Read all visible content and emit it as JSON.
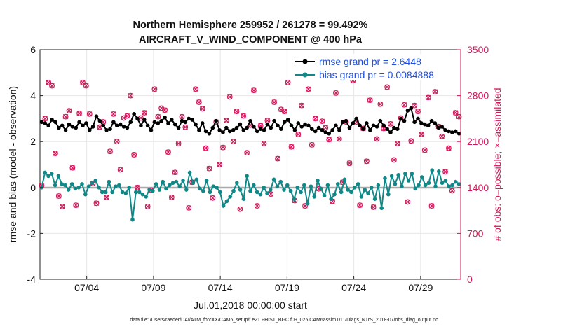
{
  "chart_data": {
    "type": "line",
    "title": "Northern Hemisphere 259952 / 261278 = 99.492%",
    "subtitle": "AIRCRAFT_V_WIND_COMPONENT @ 400 hPa",
    "xlabel": "Jul.01,2018 00:00:00 start",
    "ylabel": "rmse and bias (model - observation)",
    "y2label": "# of obs: o=possible; ×=assimilated",
    "xlim": [
      0,
      31.5
    ],
    "ylim": [
      -4,
      6
    ],
    "y2lim": [
      0,
      3500
    ],
    "grid": true,
    "legend_position": "top-right",
    "xticks": [
      3.5,
      8.5,
      13.5,
      18.5,
      23.5,
      28.5
    ],
    "xtick_labels": [
      "07/04",
      "07/09",
      "07/14",
      "07/19",
      "07/24",
      "07/29"
    ],
    "yticks": [
      -4,
      -2,
      0,
      2,
      4,
      6
    ],
    "ytick_labels": [
      "-4",
      "-2",
      "0",
      "2",
      "4",
      "6"
    ],
    "y2ticks": [
      0,
      700,
      1400,
      2100,
      2800,
      3500
    ],
    "y2tick_labels": [
      "0",
      "700",
      "1400",
      "2100",
      "2800",
      "3500"
    ],
    "series": [
      {
        "name": "rmse grand pr = 2.6448",
        "color": "#000000",
        "axis": "left",
        "values": [
          2.85,
          2.8,
          2.7,
          2.95,
          2.85,
          2.6,
          2.7,
          2.5,
          2.75,
          2.65,
          2.6,
          2.85,
          2.7,
          2.8,
          2.5,
          2.65,
          3.1,
          2.9,
          2.7,
          2.5,
          2.55,
          2.85,
          2.7,
          2.75,
          2.65,
          2.6,
          2.85,
          3.2,
          3.0,
          2.7,
          2.95,
          2.7,
          2.5,
          2.85,
          2.8,
          2.9,
          3.05,
          2.8,
          2.95,
          2.75,
          2.6,
          2.9,
          2.85,
          3.0,
          2.95,
          2.75,
          2.5,
          2.8,
          2.45,
          2.35,
          2.6,
          2.9,
          2.5,
          2.4,
          2.6,
          2.45,
          2.5,
          2.6,
          2.75,
          2.5,
          2.6,
          2.9,
          2.65,
          2.45,
          2.55,
          2.5,
          2.75,
          2.6,
          2.9,
          2.7,
          2.55,
          2.85,
          2.95,
          2.7,
          2.5,
          2.8,
          2.65,
          2.75,
          2.7,
          2.55,
          2.45,
          2.6,
          2.5,
          2.4,
          2.35,
          2.5,
          2.7,
          2.5,
          2.85,
          2.9,
          2.6,
          2.8,
          3.0,
          2.7,
          2.55,
          2.8,
          2.5,
          2.7,
          2.65,
          2.9,
          2.7,
          2.55,
          2.4,
          2.6,
          2.55,
          3.0,
          2.9,
          3.35,
          3.45,
          2.85,
          3.0,
          2.8,
          2.75,
          2.7,
          2.9,
          2.8,
          2.6,
          2.65,
          2.5,
          2.45,
          2.4,
          2.45,
          2.35
        ]
      },
      {
        "name": "bias grand pr = 0.0084888",
        "color": "#118888",
        "axis": "left",
        "values": [
          0.0,
          0.65,
          0.5,
          0.6,
          0.1,
          0.5,
          0.15,
          0.1,
          -0.1,
          0.15,
          -0.05,
          0.0,
          0.15,
          -0.3,
          0.05,
          0.2,
          0.3,
          0.0,
          -0.2,
          -0.2,
          0.25,
          -0.2,
          0.05,
          0.1,
          -0.2,
          -0.25,
          0.0,
          -1.4,
          -0.2,
          -0.2,
          -0.3,
          -0.4,
          -0.1,
          -0.15,
          0.15,
          -0.1,
          0.25,
          -0.05,
          0.1,
          0.2,
          0.25,
          0.05,
          0.3,
          -0.1,
          0.65,
          0.2,
          0.35,
          -0.05,
          -0.15,
          0.3,
          -0.2,
          0.05,
          0.0,
          -0.2,
          -0.8,
          -0.6,
          -0.4,
          -0.15,
          0.2,
          -0.1,
          -0.5,
          0.5,
          -0.15,
          0.1,
          -0.2,
          -0.3,
          0.0,
          -0.25,
          -0.1,
          0.35,
          0.05,
          0.25,
          -0.1,
          0.1,
          -0.15,
          -0.5,
          0.0,
          -0.2,
          0.1,
          -0.7,
          0.05,
          -0.4,
          0.3,
          -0.05,
          -0.35,
          0.1,
          -0.5,
          -0.3,
          0.15,
          -0.2,
          0.35,
          -0.1,
          -0.2,
          0.0,
          0.15,
          -0.4,
          -0.1,
          -0.25,
          0.0,
          -0.5,
          0.1,
          -0.9,
          0.4,
          -0.3,
          0.5,
          0.15,
          0.55,
          0.05,
          0.6,
          0.3,
          0.6,
          -0.05,
          0.1,
          0.45,
          0.1,
          0.2,
          0.75,
          0.05,
          0.7,
          0.2,
          0.3,
          0.05,
          0.1,
          0.25,
          0.15
        ]
      },
      {
        "name": "possible observations",
        "marker": "o",
        "color": "#d1185a",
        "axis": "right",
        "values": [
          1430,
          2450,
          3000,
          2950,
          1920,
          1270,
          1110,
          2480,
          2570,
          1700,
          1130,
          2530,
          3000,
          2950,
          2520,
          1460,
          1160,
          2320,
          2400,
          1250,
          1950,
          2520,
          2100,
          1670,
          2460,
          2490,
          2800,
          1900,
          1400,
          2460,
          2540,
          1110,
          1360,
          2900,
          2480,
          2610,
          2580,
          1940,
          1250,
          1630,
          2070,
          2480,
          2320,
          1090,
          1480,
          2900,
          2700,
          2600,
          2000,
          1690,
          1240,
          2400,
          1750,
          2010,
          2420,
          2780,
          2100,
          2560,
          1070,
          2490,
          1930,
          2350,
          2880,
          1120,
          2340,
          2070,
          2420,
          1300,
          2700,
          1840,
          2590,
          2560,
          3000,
          2020,
          1200,
          2210,
          2650,
          1120,
          2900,
          2050,
          2450,
          1380,
          2410,
          2310,
          2130,
          1190,
          2840,
          2140,
          1480,
          2400,
          1770,
          3030,
          2400,
          1130,
          2300,
          1800,
          2730,
          1100,
          2140,
          2670,
          2300,
          2930,
          2370,
          1820,
          2070,
          2460,
          2660,
          1180,
          2110,
          2650,
          2560,
          2210,
          1970,
          2770,
          1120,
          2860,
          2330,
          2180,
          1640,
          2000,
          1350,
          2540,
          2480
        ]
      }
    ]
  },
  "footer": "data file: /Users/raeder/DAI/ATM_forcXX/CAM6_setup/f.e21.FHIST_BGC.f09_025.CAM6assim.011/Diags_NTrS_2018-07/obs_diag_output.nc",
  "colors": {
    "rmse": "#000000",
    "bias": "#118888",
    "obs": "#d1185a",
    "legend_text": "#1f4fe0",
    "grid": "#e6e6e6"
  }
}
